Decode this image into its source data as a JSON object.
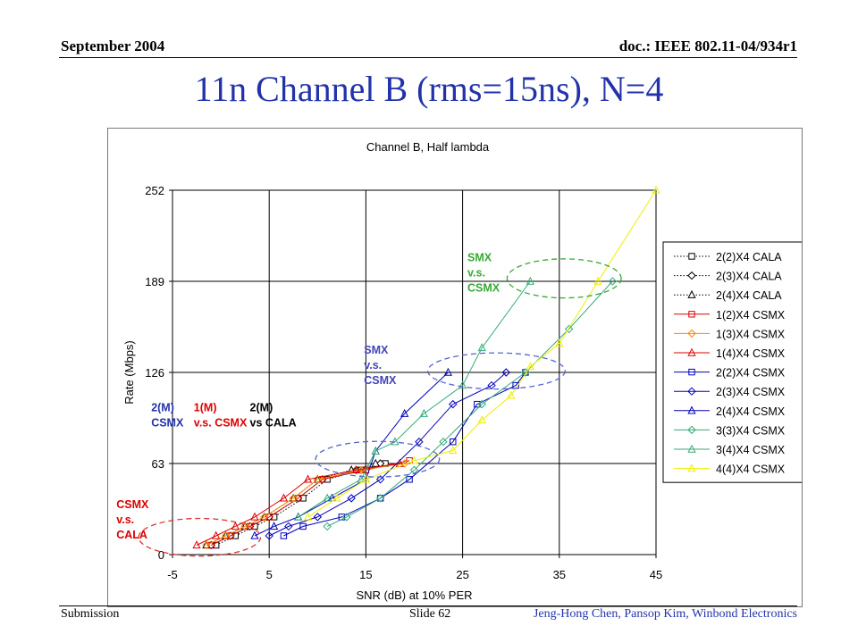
{
  "header": {
    "left": "September 2004",
    "right": "doc.: IEEE 802.11-04/934r1"
  },
  "slide_title": "11n Channel B (rms=15ns), N=4",
  "footer": {
    "left": "Submission",
    "center": "Slide 62",
    "right": "Jeng-Hong Chen, Pansop Kim, Winbond Electronics"
  },
  "chart_data": {
    "type": "line",
    "title": "Channel B, Half lambda",
    "xlabel": "SNR (dB) at 10% PER",
    "ylabel": "Rate (Mbps)",
    "xlim": [
      -5,
      45
    ],
    "ylim": [
      0,
      252
    ],
    "xticks": [
      -5,
      5,
      15,
      25,
      35,
      45
    ],
    "yticks": [
      0,
      63,
      126,
      189,
      252
    ],
    "grid": true,
    "legend_position": "right",
    "series": [
      {
        "name": "2(2)X4 CALA",
        "color": "#000000",
        "marker": "square",
        "dash": "dotted",
        "points": [
          [
            -0.5,
            6.5
          ],
          [
            1.5,
            13
          ],
          [
            3.5,
            19.5
          ],
          [
            5.5,
            26
          ],
          [
            8.5,
            39
          ],
          [
            11,
            52
          ],
          [
            14.5,
            58.5
          ],
          [
            17,
            63
          ]
        ]
      },
      {
        "name": "2(3)X4 CALA",
        "color": "#000000",
        "marker": "diamond",
        "dash": "dotted",
        "points": [
          [
            -1,
            6.5
          ],
          [
            1,
            13
          ],
          [
            3,
            19.5
          ],
          [
            5,
            26
          ],
          [
            8,
            39
          ],
          [
            10.5,
            52
          ],
          [
            14,
            58.5
          ],
          [
            16.5,
            63
          ]
        ]
      },
      {
        "name": "2(4)X4 CALA",
        "color": "#000000",
        "marker": "triangle",
        "dash": "dotted",
        "points": [
          [
            -1.5,
            6.5
          ],
          [
            0.5,
            13
          ],
          [
            2.5,
            19.5
          ],
          [
            4.5,
            26
          ],
          [
            7.5,
            39
          ],
          [
            10,
            52
          ],
          [
            13.5,
            58.5
          ],
          [
            16,
            63
          ]
        ]
      },
      {
        "name": "1(2)X4 CSMX",
        "color": "#dd0000",
        "marker": "square",
        "dash": "solid",
        "points": [
          [
            -1,
            6.5
          ],
          [
            1,
            13
          ],
          [
            3,
            19.5
          ],
          [
            5,
            26
          ],
          [
            8,
            39
          ],
          [
            10.5,
            52
          ],
          [
            15,
            58.5
          ],
          [
            19.5,
            65
          ]
        ]
      },
      {
        "name": "1(3)X4 CSMX",
        "color": "#ff8800",
        "marker": "diamond",
        "dash": "solid",
        "points": [
          [
            -1.5,
            6.5
          ],
          [
            0.5,
            13
          ],
          [
            2.5,
            19.5
          ],
          [
            4.5,
            26
          ],
          [
            7.5,
            39
          ],
          [
            10,
            52
          ],
          [
            14.5,
            58.5
          ],
          [
            19,
            63
          ]
        ]
      },
      {
        "name": "1(4)X4 CSMX",
        "color": "#dd0000",
        "marker": "triangle",
        "dash": "solid",
        "points": [
          [
            -2.5,
            6.5
          ],
          [
            -0.5,
            13
          ],
          [
            1.5,
            19.5
          ],
          [
            3.5,
            26
          ],
          [
            6.5,
            39
          ],
          [
            9,
            52
          ],
          [
            14,
            58.5
          ],
          [
            18.5,
            63
          ]
        ]
      },
      {
        "name": "2(2)X4 CSMX",
        "color": "#0000bb",
        "marker": "square",
        "dash": "solid",
        "points": [
          [
            6.5,
            13
          ],
          [
            8.5,
            19.5
          ],
          [
            12.5,
            26
          ],
          [
            16.5,
            39
          ],
          [
            19.5,
            52
          ],
          [
            24,
            78
          ],
          [
            26.5,
            104
          ],
          [
            30.5,
            117
          ],
          [
            31.5,
            126
          ]
        ]
      },
      {
        "name": "2(3)X4 CSMX",
        "color": "#0000bb",
        "marker": "diamond",
        "dash": "solid",
        "points": [
          [
            5,
            13
          ],
          [
            7,
            19.5
          ],
          [
            10,
            26
          ],
          [
            13.5,
            39
          ],
          [
            16.5,
            52
          ],
          [
            20.5,
            78
          ],
          [
            24,
            104
          ],
          [
            28,
            117
          ],
          [
            29.5,
            126
          ]
        ]
      },
      {
        "name": "2(4)X4 CSMX",
        "color": "#0000bb",
        "marker": "triangle",
        "dash": "solid",
        "points": [
          [
            3.5,
            13
          ],
          [
            5.5,
            19.5
          ],
          [
            8,
            26
          ],
          [
            11.5,
            39
          ],
          [
            15,
            52
          ],
          [
            16,
            71.5
          ],
          [
            19,
            97.5
          ],
          [
            23.5,
            126
          ]
        ]
      },
      {
        "name": "3(3)X4 CSMX",
        "color": "#33aa77",
        "marker": "diamond",
        "dash": "solid",
        "points": [
          [
            11,
            19.5
          ],
          [
            13,
            26
          ],
          [
            16.5,
            39
          ],
          [
            20,
            58.5
          ],
          [
            23,
            78
          ],
          [
            27,
            104
          ],
          [
            31.5,
            126
          ],
          [
            36,
            156
          ],
          [
            40.5,
            189
          ]
        ]
      },
      {
        "name": "3(4)X4 CSMX",
        "color": "#33aa77",
        "marker": "triangle",
        "dash": "solid",
        "points": [
          [
            8,
            26
          ],
          [
            11,
            39
          ],
          [
            14.5,
            52
          ],
          [
            16,
            71.5
          ],
          [
            18,
            78
          ],
          [
            21,
            97.5
          ],
          [
            25,
            117
          ],
          [
            27,
            143
          ],
          [
            32,
            189
          ]
        ]
      },
      {
        "name": "4(4)X4 CSMX",
        "color": "#eeee00",
        "marker": "triangle",
        "dash": "solid",
        "points": [
          [
            9,
            26
          ],
          [
            12,
            39
          ],
          [
            15,
            52
          ],
          [
            20,
            65
          ],
          [
            24,
            72
          ],
          [
            27,
            93
          ],
          [
            30,
            110
          ],
          [
            32,
            130
          ],
          [
            35,
            146
          ],
          [
            39,
            189
          ],
          [
            45,
            252
          ]
        ]
      }
    ],
    "annotations": [
      {
        "lines": [
          "SMX",
          "v.s.",
          "CSMX"
        ],
        "color": "#33aa33",
        "anchor": [
          25.5,
          203
        ]
      },
      {
        "lines": [
          "SMX",
          "v.s.",
          "CSMX"
        ],
        "color": "#4444bb",
        "anchor": [
          14.8,
          139
        ]
      },
      {
        "lines": [
          "2(M)",
          "CSMX"
        ],
        "color": "#2233aa",
        "anchor": [
          -7.2,
          99
        ]
      },
      {
        "lines": [
          "1(M)",
          "v.s. CSMX"
        ],
        "color": "#dd0000",
        "anchor": [
          -2.8,
          99
        ]
      },
      {
        "lines": [
          "2(M)",
          "vs CALA"
        ],
        "color": "#000000",
        "anchor": [
          3.0,
          99
        ]
      },
      {
        "lines": [
          "CSMX",
          "v.s.",
          "CALA"
        ],
        "color": "#dd0000",
        "anchor": [
          -10.8,
          32
        ]
      }
    ],
    "ellipses": [
      {
        "color": "#33aa33",
        "center": [
          35.5,
          191
        ],
        "radii": [
          5.9,
          13.5
        ]
      },
      {
        "color": "#5566cc",
        "center": [
          28.5,
          127
        ],
        "radii": [
          7.1,
          12.5
        ]
      },
      {
        "color": "#5566cc",
        "center": [
          16.2,
          66
        ],
        "radii": [
          6.4,
          12.3
        ]
      },
      {
        "color": "#dd3333",
        "center": [
          -2.2,
          12
        ],
        "radii": [
          6.3,
          13
        ]
      }
    ]
  }
}
